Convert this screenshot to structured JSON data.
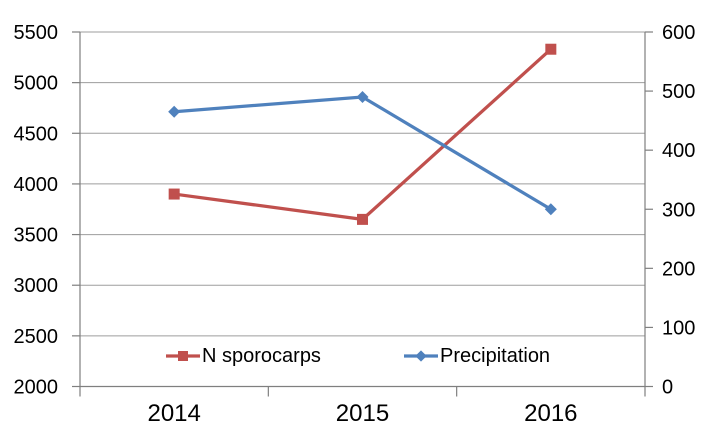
{
  "chart_data": {
    "type": "line",
    "title": "",
    "xlabel": "",
    "ylabel_left": "",
    "ylabel_right": "",
    "categories": [
      "2014",
      "2015",
      "2016"
    ],
    "series": [
      {
        "name": "N sporocarps",
        "axis": "left",
        "color": "#C0504D",
        "marker": "square",
        "values": [
          3900,
          3650,
          5330
        ]
      },
      {
        "name": "Precipitation",
        "axis": "right",
        "color": "#4F81BD",
        "marker": "diamond",
        "values": [
          465,
          490,
          300
        ]
      }
    ],
    "left_axis": {
      "min": 2000,
      "max": 5500,
      "step": 500,
      "tick_labels": [
        "2000",
        "2500",
        "3000",
        "3500",
        "4000",
        "4500",
        "5000",
        "5500"
      ]
    },
    "right_axis": {
      "min": 0,
      "max": 600,
      "step": 100,
      "tick_labels": [
        "0",
        "100",
        "200",
        "300",
        "400",
        "500",
        "600"
      ]
    },
    "grid": true,
    "legend_position": "bottom-inside"
  },
  "colors": {
    "background": "#FFFFFF",
    "gridline": "#9D9D9D",
    "axis": "#7F7F7F",
    "text": "#000000",
    "series_red": "#C0504D",
    "series_blue": "#4F81BD"
  }
}
